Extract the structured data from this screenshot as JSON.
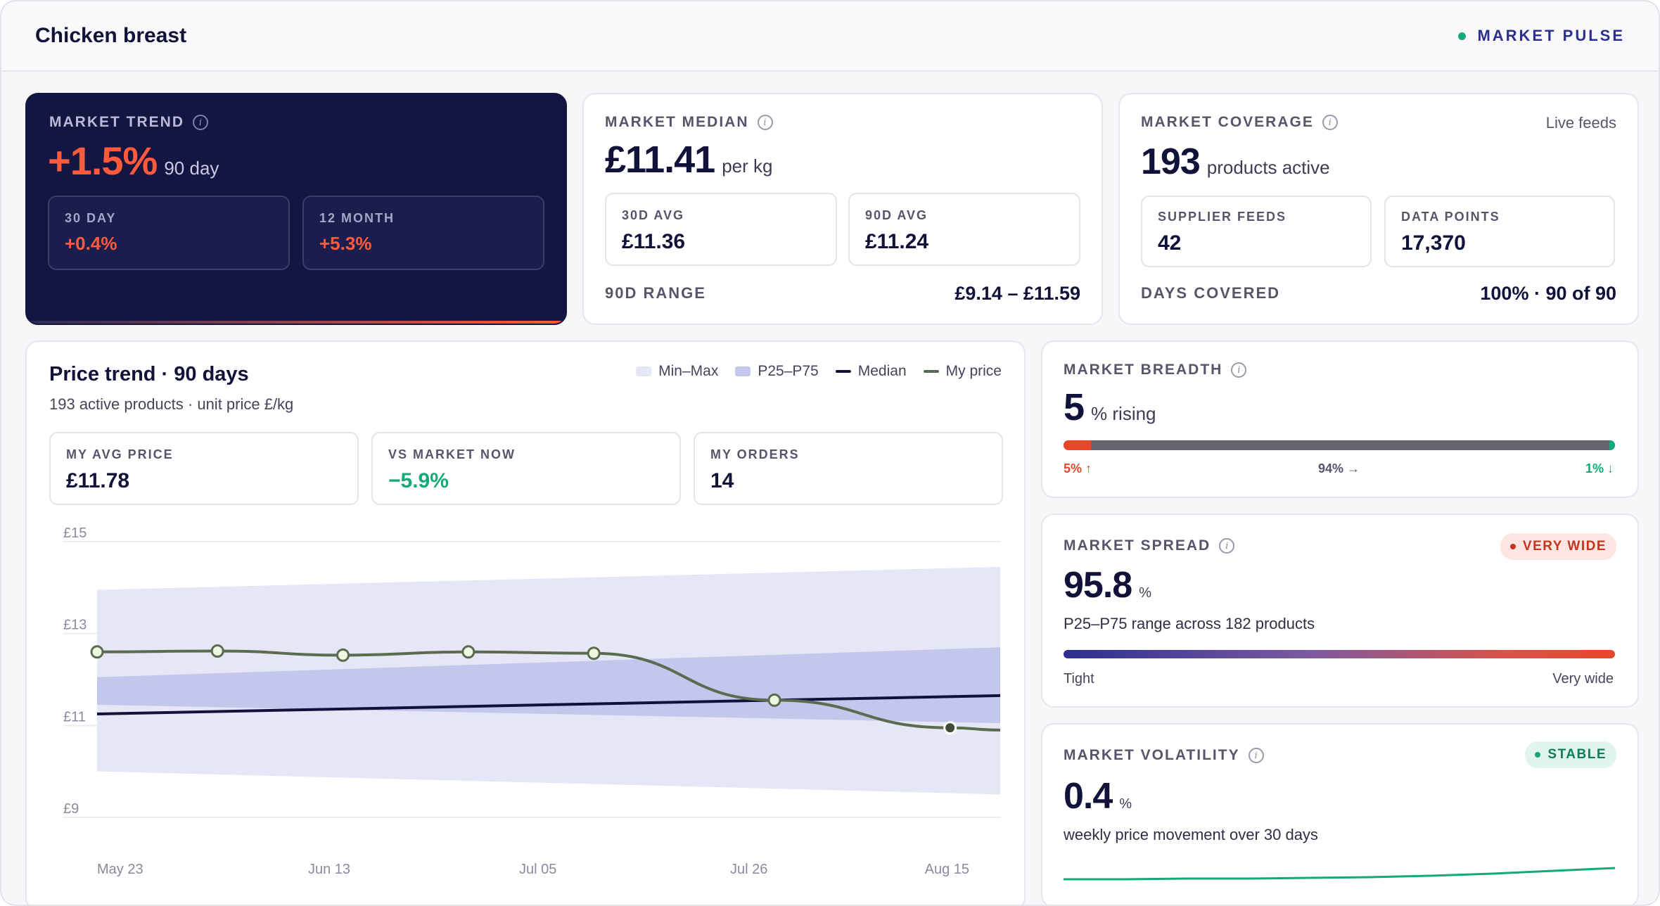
{
  "header": {
    "title": "Chicken breast",
    "pulse_label": "MARKET PULSE"
  },
  "colors": {
    "navy": "#141540",
    "accent_red": "#ff5a3c",
    "green": "#14a97a",
    "median": "#10123a",
    "my_price": "#5a6b4f",
    "band_outer": "#e6e7f6",
    "band_inner": "#c3c7ec"
  },
  "market_trend": {
    "label": "MARKET TREND",
    "value": "+1.5%",
    "period": "90 day",
    "sub": [
      {
        "label": "30 DAY",
        "value": "+0.4%"
      },
      {
        "label": "12 MONTH",
        "value": "+5.3%"
      }
    ]
  },
  "market_median": {
    "label": "MARKET MEDIAN",
    "value": "£11.41",
    "unit": "per kg",
    "sub": [
      {
        "label": "30D AVG",
        "value": "£11.36"
      },
      {
        "label": "90D AVG",
        "value": "£11.24"
      }
    ],
    "range_label": "90D RANGE",
    "range_value": "£9.14 – £11.59"
  },
  "market_coverage": {
    "label": "MARKET COVERAGE",
    "live": "Live feeds",
    "value": "193",
    "unit": "products active",
    "sub": [
      {
        "label": "SUPPLIER FEEDS",
        "value": "42"
      },
      {
        "label": "DATA POINTS",
        "value": "17,370"
      }
    ],
    "days_label": "DAYS COVERED",
    "days_value": "100% · 90 of 90"
  },
  "price_trend": {
    "title": "Price trend · 90 days",
    "subtitle": "193 active products · unit price £/kg",
    "legend": [
      "Min–Max",
      "P25–P75",
      "Median",
      "My price"
    ],
    "stats": [
      {
        "label": "MY AVG PRICE",
        "value": "£11.78"
      },
      {
        "label": "VS MARKET NOW",
        "value": "−5.9%"
      },
      {
        "label": "MY ORDERS",
        "value": "14"
      }
    ]
  },
  "chart_data": {
    "type": "line",
    "x_ticks": [
      "May 23",
      "Jun 13",
      "Jul 05",
      "Jul 26",
      "Aug 15"
    ],
    "y_ticks": [
      "£15",
      "£13",
      "£11",
      "£9"
    ],
    "ylim": [
      9,
      15
    ],
    "x_days": [
      0,
      90
    ],
    "grid": true,
    "series": [
      {
        "name": "Min–Max",
        "kind": "band",
        "x": [
          0,
          90
        ],
        "lower": [
          10.0,
          9.5
        ],
        "upper": [
          13.95,
          14.45
        ]
      },
      {
        "name": "P25–P75",
        "kind": "band",
        "x": [
          0,
          90
        ],
        "lower": [
          11.45,
          11.05
        ],
        "upper": [
          12.05,
          12.7
        ]
      },
      {
        "name": "Median",
        "kind": "line",
        "x": [
          0,
          90
        ],
        "y": [
          11.25,
          11.65
        ]
      },
      {
        "name": "My price",
        "kind": "line",
        "x": [
          0,
          12,
          24.5,
          37,
          49.5,
          67.5,
          85
        ],
        "y": [
          12.6,
          12.62,
          12.53,
          12.6,
          12.57,
          11.55,
          10.95
        ],
        "end_y": 10.9
      }
    ]
  },
  "market_breadth": {
    "label": "MARKET BREADTH",
    "value": "5",
    "unit": "% rising",
    "rising": 5,
    "flat": 94,
    "falling": 1,
    "rising_label": "5% ↑",
    "flat_label": "94% →",
    "falling_label": "1% ↓"
  },
  "market_spread": {
    "label": "MARKET SPREAD",
    "badge": "VERY WIDE",
    "value": "95.8",
    "unit": "%",
    "desc": "P25–P75 range across 182 products",
    "left": "Tight",
    "right": "Very wide"
  },
  "market_volatility": {
    "label": "MARKET VOLATILITY",
    "badge": "STABLE",
    "value": "0.4",
    "unit": "%",
    "desc": "weekly price movement over 30 days",
    "spark": [
      0.1,
      0.1,
      0.11,
      0.11,
      0.12,
      0.13,
      0.15,
      0.18,
      0.22,
      0.26
    ]
  }
}
